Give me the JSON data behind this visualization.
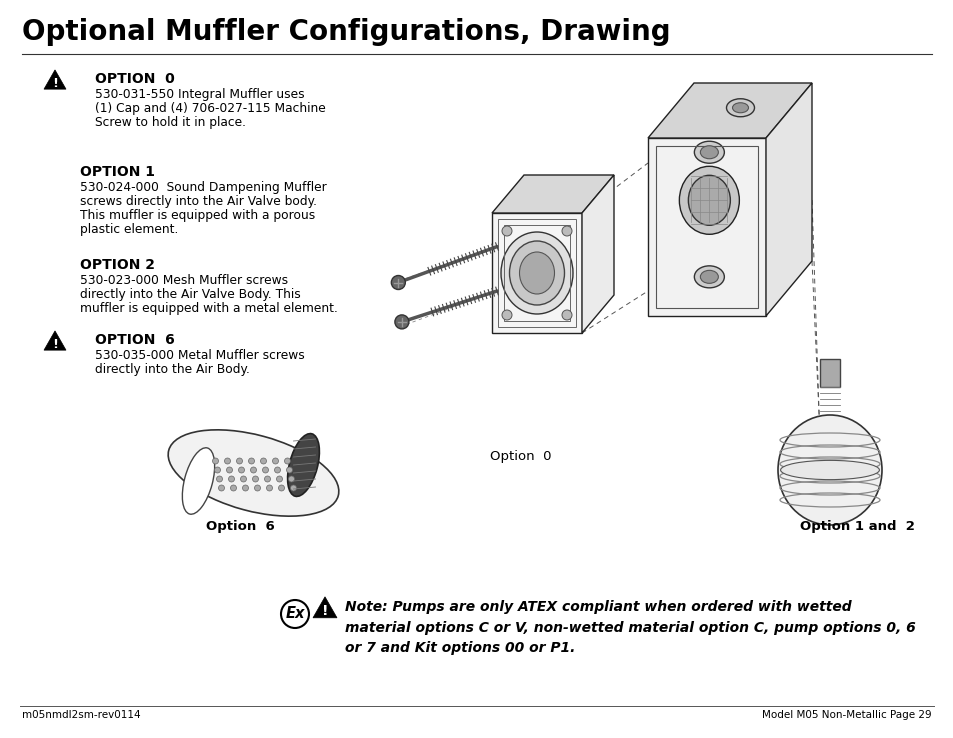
{
  "title": "Optional Muffler Configurations, Drawing",
  "title_fontsize": 20,
  "title_fontweight": "bold",
  "background_color": "#ffffff",
  "text_color": "#000000",
  "footer_left": "m05nmdl2sm-rev0114",
  "footer_right": "Model M05 Non-Metallic Page 29",
  "options": [
    {
      "label": "OPTION  0",
      "bold": true,
      "warning_icon": true,
      "lines": [
        "530-031-550 Integral Muffler uses",
        "(1) Cap and (4) 706-027-115 Machine",
        "Screw to hold it in place."
      ]
    },
    {
      "label": "OPTION 1",
      "bold": true,
      "warning_icon": false,
      "lines": [
        "530-024-000  Sound Dampening Muffler",
        "screws directly into the Air Valve body.",
        "This muffler is equipped with a porous",
        "plastic element."
      ]
    },
    {
      "label": "OPTION 2",
      "bold": true,
      "warning_icon": false,
      "lines": [
        "530-023-000 Mesh Muffler screws",
        "directly into the Air Valve Body. This",
        "muffler is equipped with a metal element."
      ]
    },
    {
      "label": "OPTION  6",
      "bold": true,
      "warning_icon": true,
      "lines": [
        "530-035-000 Metal Muffler screws",
        "directly into the Air Body."
      ]
    }
  ],
  "diagram_caption_option0": "Option  0",
  "diagram_caption_option6": "Option  6",
  "diagram_caption_option12": "Option 1 and  2",
  "note_text": "Note: Pumps are only ATEX compliant when ordered with wetted\nmaterial options C or V, non-wetted material option C, pump options 0, 6\nor 7 and Kit options 00 or P1.",
  "note_fontsize": 10,
  "note_italic": true,
  "note_bold": true
}
